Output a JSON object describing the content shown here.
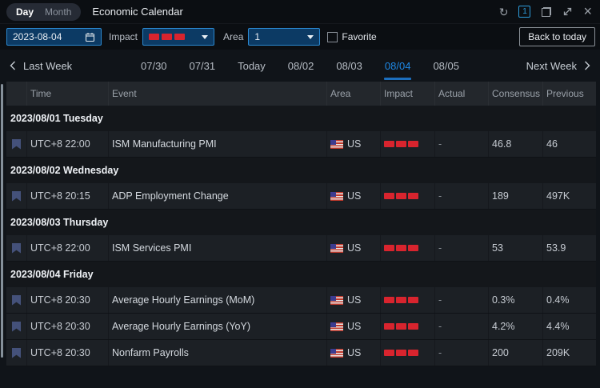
{
  "titlebar": {
    "toggle_day": "Day",
    "toggle_month": "Month",
    "active_view": "Day",
    "title": "Economic Calendar",
    "page_indicator": "1",
    "window_icons": [
      "refresh-icon",
      "page-indicator",
      "restore-icon",
      "expand-icon",
      "close-icon"
    ]
  },
  "toolbar": {
    "date_value": "2023-08-04",
    "impact_label": "Impact",
    "impact_selected_bars": 3,
    "area_label": "Area",
    "area_value": "1",
    "favorite_label": "Favorite",
    "favorite_checked": false,
    "back_button": "Back to today"
  },
  "week_nav": {
    "prev_label": "Last Week",
    "next_label": "Next Week",
    "days": [
      {
        "label": "07/30",
        "active": false
      },
      {
        "label": "07/31",
        "active": false
      },
      {
        "label": "Today",
        "active": false
      },
      {
        "label": "08/02",
        "active": false
      },
      {
        "label": "08/03",
        "active": false
      },
      {
        "label": "08/04",
        "active": true
      },
      {
        "label": "08/05",
        "active": false
      }
    ]
  },
  "table": {
    "columns": [
      "Time",
      "Event",
      "Area",
      "Impact",
      "Actual",
      "Consensus",
      "Previous"
    ],
    "groups": [
      {
        "date": "2023/08/01 Tuesday",
        "rows": [
          {
            "time": "UTC+8 22:00",
            "event": "ISM Manufacturing PMI",
            "area": "US",
            "impact": 3,
            "actual": "-",
            "consensus": "46.8",
            "previous": "46"
          }
        ]
      },
      {
        "date": "2023/08/02 Wednesday",
        "rows": [
          {
            "time": "UTC+8 20:15",
            "event": "ADP Employment Change",
            "area": "US",
            "impact": 3,
            "actual": "-",
            "consensus": "189",
            "previous": "497K"
          }
        ]
      },
      {
        "date": "2023/08/03 Thursday",
        "rows": [
          {
            "time": "UTC+8 22:00",
            "event": "ISM Services PMI",
            "area": "US",
            "impact": 3,
            "actual": "-",
            "consensus": "53",
            "previous": "53.9"
          }
        ]
      },
      {
        "date": "2023/08/04 Friday",
        "rows": [
          {
            "time": "UTC+8 20:30",
            "event": "Average Hourly Earnings (MoM)",
            "area": "US",
            "impact": 3,
            "actual": "-",
            "consensus": "0.3%",
            "previous": "0.4%"
          },
          {
            "time": "UTC+8 20:30",
            "event": "Average Hourly Earnings (YoY)",
            "area": "US",
            "impact": 3,
            "actual": "-",
            "consensus": "4.2%",
            "previous": "4.4%"
          },
          {
            "time": "UTC+8 20:30",
            "event": "Nonfarm Payrolls",
            "area": "US",
            "impact": 3,
            "actual": "-",
            "consensus": "200",
            "previous": "209K"
          }
        ]
      }
    ]
  },
  "colors": {
    "accent_blue": "#1e88e5",
    "input_border_blue": "#2b88cf",
    "input_bg_blue": "#0c3a64",
    "impact_red": "#d8242e",
    "page_indicator_blue": "#2d9cdb"
  },
  "icons": {
    "refresh-icon": "circular arrow ↻",
    "calendar-icon": "calendar outline",
    "restore-icon": "overlapping squares",
    "expand-icon": "diagonal resize arrows",
    "close-icon": "×",
    "bookmark-icon": "ribbon bookmark",
    "us-flag-icon": "US flag",
    "chevron-left-icon": "<",
    "chevron-right-icon": ">",
    "caret-down-icon": "filled triangle"
  }
}
